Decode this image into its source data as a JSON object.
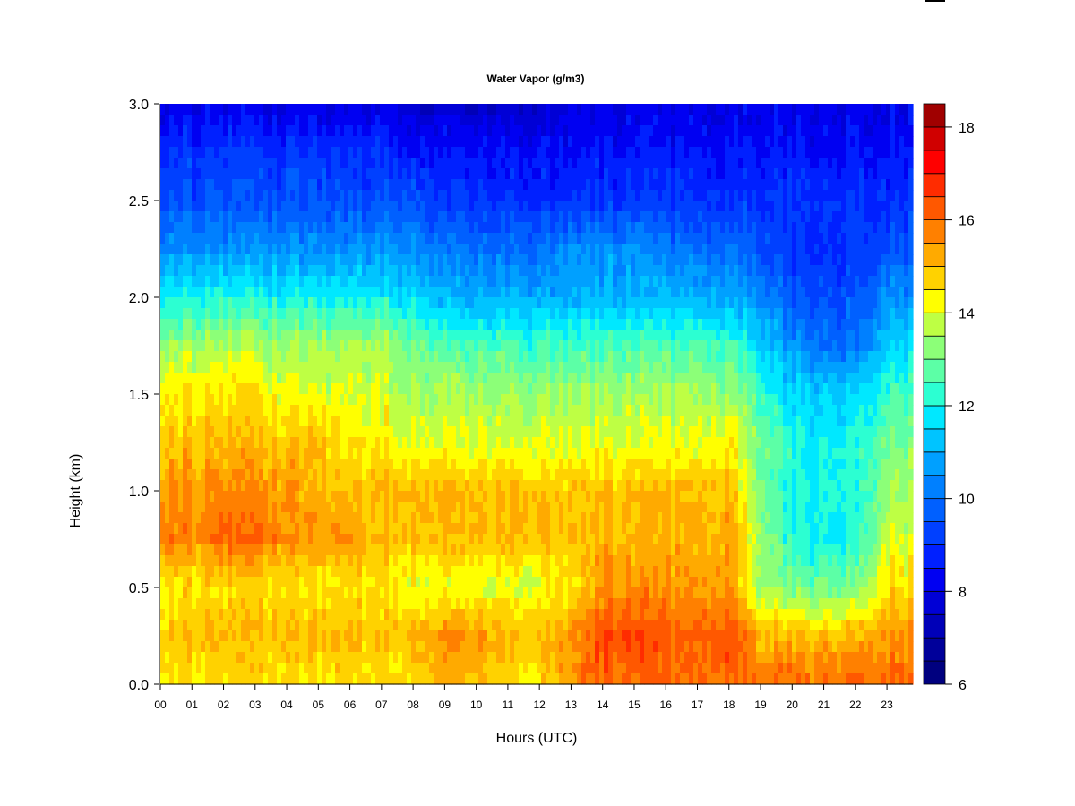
{
  "chart_data": {
    "type": "heatmap",
    "title": "Water Vapor (g/m3)",
    "xlabel": "Hours (UTC)",
    "ylabel": "Height (km)",
    "xlim": [
      0,
      23.82
    ],
    "ylim": [
      0,
      3.0
    ],
    "x_ticks": [
      "00",
      "01",
      "02",
      "03",
      "04",
      "05",
      "06",
      "07",
      "08",
      "09",
      "10",
      "11",
      "12",
      "13",
      "14",
      "15",
      "16",
      "17",
      "18",
      "19",
      "20",
      "21",
      "22",
      "23"
    ],
    "y_ticks": [
      "0.0",
      "0.5",
      "1.0",
      "1.5",
      "2.0",
      "2.5",
      "3.0"
    ],
    "y_tick_values": [
      0,
      0.5,
      1.0,
      1.5,
      2.0,
      2.5,
      3.0
    ],
    "colorbar": {
      "min": 6,
      "max": 18.5,
      "step": 0.5,
      "tick_labels": [
        "6",
        "8",
        "10",
        "12",
        "14",
        "16",
        "18"
      ],
      "tick_values": [
        6,
        8,
        10,
        12,
        14,
        16,
        18
      ],
      "colors": [
        "#00007F",
        "#00009A",
        "#0000B8",
        "#0000D6",
        "#0000F2",
        "#0020FF",
        "#0040FF",
        "#0060FF",
        "#0080FF",
        "#00A0FF",
        "#00C4FF",
        "#00E8FF",
        "#2CFFD2",
        "#5CFFA6",
        "#8CFF78",
        "#BEFF44",
        "#FFFF00",
        "#FFD200",
        "#FFAA00",
        "#FF8000",
        "#FF5800",
        "#FF2C00",
        "#FF0000",
        "#D00000",
        "#A00000"
      ]
    },
    "grid_hours": [
      0,
      1,
      2,
      3,
      4,
      5,
      6,
      7,
      8,
      9,
      10,
      11,
      12,
      13,
      14,
      15,
      16,
      17,
      18,
      19,
      20,
      21,
      22,
      23
    ],
    "grid_heights_km": [
      0,
      0.25,
      0.5,
      0.75,
      1.0,
      1.25,
      1.5,
      1.75,
      2.0,
      2.25,
      2.5,
      2.75,
      3.0
    ],
    "values_g_m3": [
      [
        14.5,
        14.5,
        14.5,
        14.5,
        14.5,
        14.5,
        14.5,
        14.5,
        14.5,
        15,
        15,
        14.5,
        14.5,
        15.5,
        16,
        16,
        16,
        16,
        16,
        16,
        16,
        16,
        16,
        16
      ],
      [
        15,
        15,
        15,
        15,
        15,
        15,
        15,
        15,
        15,
        15.5,
        15.5,
        15,
        15,
        15.5,
        16.5,
        16.5,
        16,
        16,
        16.5,
        15,
        15,
        15,
        15,
        15.5
      ],
      [
        14.5,
        14.5,
        14.5,
        14.5,
        14.5,
        14.5,
        14.5,
        14.5,
        14,
        14,
        14,
        14,
        14,
        14.5,
        15.5,
        15.5,
        15.5,
        15.5,
        15.5,
        13.5,
        13,
        13,
        13,
        14.5
      ],
      [
        16,
        15.5,
        16,
        16,
        15.5,
        15.5,
        15.5,
        15,
        15,
        15,
        15,
        15,
        15,
        15,
        15,
        15,
        15,
        15,
        15.5,
        13.5,
        12,
        12,
        12,
        14
      ],
      [
        15.5,
        15.5,
        15.5,
        15.5,
        15.5,
        15,
        15,
        15,
        15,
        15,
        15,
        15,
        15,
        15,
        15,
        15,
        15,
        15,
        15,
        13,
        12,
        12,
        12,
        13.5
      ],
      [
        15,
        15,
        15,
        15,
        15,
        15,
        14.5,
        14.5,
        14,
        14,
        14,
        14,
        14,
        14,
        14,
        14,
        14,
        14,
        14.5,
        13,
        12,
        12,
        12,
        13
      ],
      [
        14.5,
        14.5,
        14.5,
        14.5,
        14,
        14,
        14,
        14,
        13.5,
        13.5,
        13.5,
        13.5,
        13.5,
        13.5,
        13.5,
        13.5,
        13.5,
        13.5,
        13.5,
        12.5,
        11.5,
        11.5,
        11.5,
        12.5
      ],
      [
        13.5,
        13.5,
        13.5,
        13.5,
        13.5,
        13.5,
        13.5,
        13.5,
        13,
        12.5,
        12.5,
        12.5,
        12.5,
        12.5,
        12.5,
        12.5,
        12.5,
        12.5,
        12.5,
        11.5,
        10.5,
        10,
        10,
        11.5
      ],
      [
        12,
        12,
        12,
        12,
        12,
        12,
        12,
        12,
        11.5,
        11,
        11,
        11,
        11,
        11,
        11,
        11,
        11,
        11,
        11,
        10.5,
        9.5,
        9.5,
        9.5,
        10.5
      ],
      [
        10.5,
        10.5,
        10.5,
        10.5,
        10.5,
        10.5,
        10.5,
        10.5,
        10.5,
        10,
        10,
        10,
        10,
        10.5,
        10.5,
        10.5,
        10,
        10,
        10,
        9.5,
        9,
        9,
        9,
        9.5
      ],
      [
        9.5,
        9.5,
        9.5,
        9.5,
        9.5,
        9.5,
        9.5,
        9.5,
        9.5,
        9,
        9,
        9,
        9,
        9,
        9,
        9,
        9,
        9,
        9,
        9,
        9,
        9,
        9,
        9
      ],
      [
        9,
        9,
        9,
        9,
        9,
        9,
        9,
        9,
        8.5,
        8.5,
        8.5,
        8.5,
        8.5,
        8.5,
        8.5,
        8.5,
        8.5,
        8.5,
        8.5,
        8.5,
        8.5,
        8.5,
        8.5,
        8.5
      ],
      [
        8,
        8,
        8,
        8,
        8,
        8,
        8,
        8,
        7.5,
        7.5,
        7.5,
        7.5,
        7.5,
        8,
        8,
        8,
        8,
        8,
        8,
        8,
        8,
        8,
        8,
        8
      ]
    ]
  }
}
